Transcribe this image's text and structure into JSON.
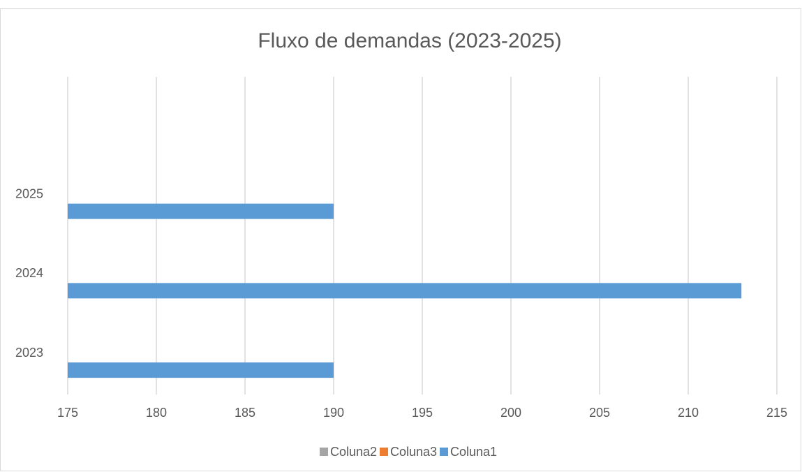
{
  "chart_data": {
    "type": "bar",
    "orientation": "horizontal",
    "title": "Fluxo de demandas (2023-2025)",
    "categories": [
      "2023",
      "2024",
      "2025",
      null
    ],
    "series": [
      {
        "name": "Coluna2",
        "color": "#a5a5a5",
        "values": [
          null,
          null,
          null,
          null
        ]
      },
      {
        "name": "Coluna3",
        "color": "#ed7d31",
        "values": [
          null,
          null,
          null,
          null
        ]
      },
      {
        "name": "Coluna1",
        "color": "#5b9bd5",
        "values": [
          190,
          213,
          190,
          null
        ]
      }
    ],
    "xlim": [
      175,
      215
    ],
    "xticks": [
      175,
      180,
      185,
      190,
      195,
      200,
      205,
      210,
      215
    ],
    "grid": true,
    "legend": "bottom"
  }
}
